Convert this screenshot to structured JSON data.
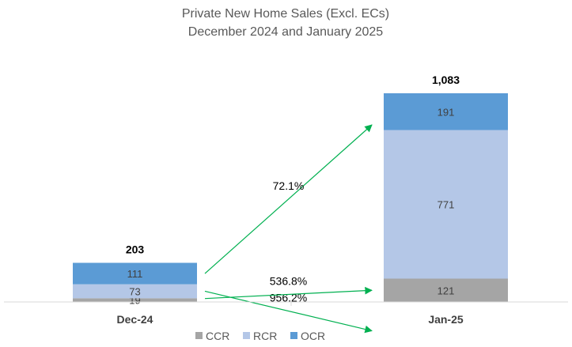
{
  "chart_data": {
    "type": "bar",
    "stacked": true,
    "title": "Private New Home Sales (Excl. ECs)",
    "subtitle": "December 2024 and January 2025",
    "categories": [
      "Dec-24",
      "Jan-25"
    ],
    "series": [
      {
        "name": "CCR",
        "values": [
          19,
          121
        ],
        "color": "#a5a5a5"
      },
      {
        "name": "RCR",
        "values": [
          73,
          771
        ],
        "color": "#b4c7e7"
      },
      {
        "name": "OCR",
        "values": [
          111,
          191
        ],
        "color": "#5b9bd5"
      }
    ],
    "totals": [
      "203",
      "1,083"
    ],
    "ylim": [
      0,
      1083
    ],
    "legend_position": "bottom",
    "growth_annotations": [
      {
        "series": "OCR",
        "label": "72.1%"
      },
      {
        "series": "RCR",
        "label": "956.2%"
      },
      {
        "series": "CCR",
        "label": "536.8%"
      }
    ],
    "arrow_color": "#00b050",
    "grid": false
  }
}
